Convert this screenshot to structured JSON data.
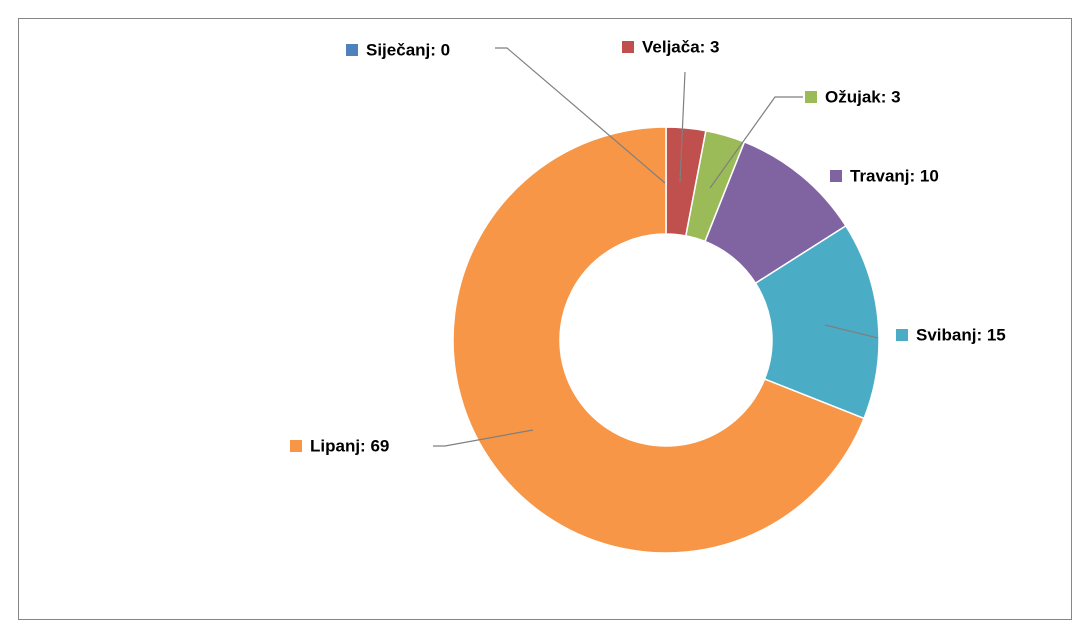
{
  "chart_data": {
    "type": "donut",
    "values": [
      0,
      3,
      3,
      10,
      15,
      69
    ],
    "value_labels": [
      "Siječanj: 0",
      "Veljača: 3",
      "Ožujak: 3",
      "Travanj: 10",
      "Svibanj: 15",
      "Lipanj: 69"
    ],
    "colors": [
      "#4f81bd",
      "#c0504d",
      "#9bbb59",
      "#8064a2",
      "#4bacc6",
      "#f79646"
    ]
  }
}
